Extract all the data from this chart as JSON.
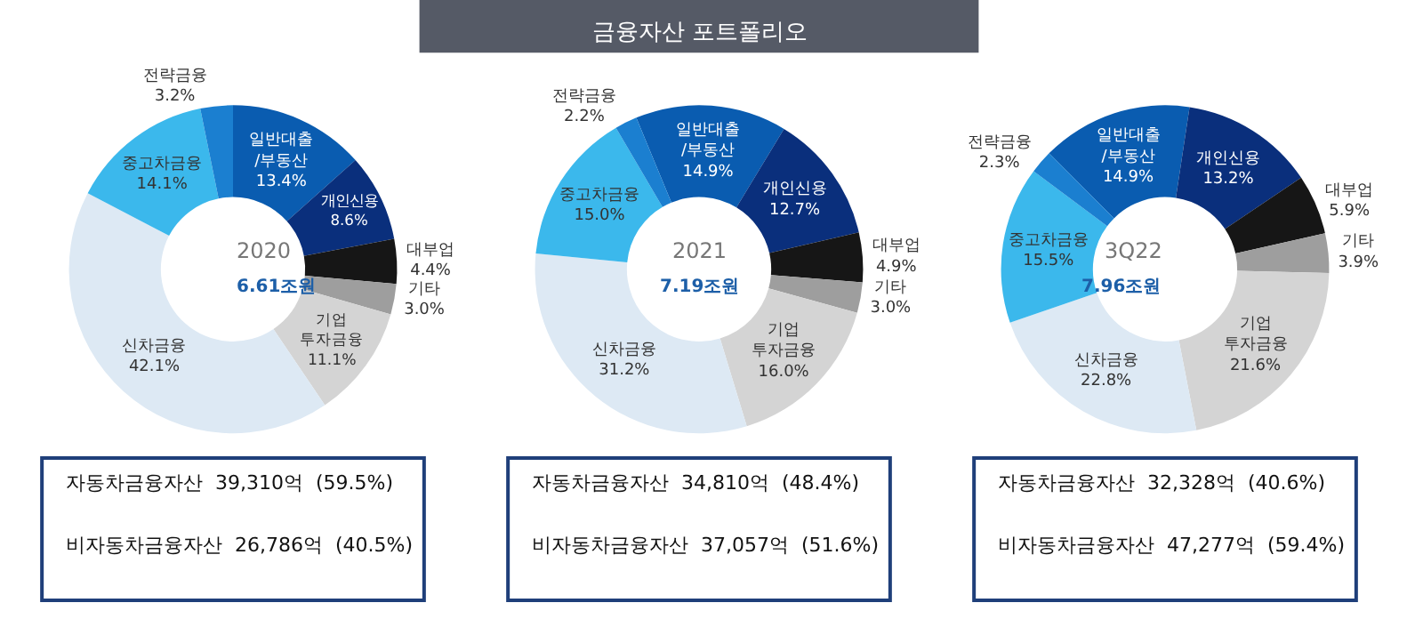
{
  "chart_data": [
    {
      "type": "other",
      "title": "금융자산 포트폴리오"
    },
    {
      "type": "donut",
      "categories": [
        "일반대출\n/부동산",
        "개인신용",
        "대부업",
        "기타",
        "기업\n투자금융",
        "신차금융",
        "중고차금융",
        "전략금융"
      ],
      "values": [
        13.4,
        8.6,
        4.4,
        3.0,
        11.1,
        42.1,
        14.1,
        3.2
      ],
      "value_labels": [
        "13.4%",
        "8.6%",
        "4.4%",
        "3.0%",
        "11.1%",
        "42.1%",
        "14.1%",
        "3.2%"
      ],
      "colors": [
        "#0a5cb0",
        "#0a2f7c",
        "#161616",
        "#9e9e9e",
        "#d4d4d4",
        "#dde9f4",
        "#3bb8ec",
        "#1b7fd0"
      ],
      "annotations": [
        "2020",
        "6.61조원",
        "자동차금융자산  39,310억  (59.5%)",
        "비자동차금융자산  26,786억  (40.5%)"
      ]
    },
    {
      "type": "donut",
      "categories": [
        "일반대출\n/부동산",
        "개인신용",
        "대부업",
        "기타",
        "기업\n투자금융",
        "신차금융",
        "중고차금융",
        "전략금융"
      ],
      "values": [
        14.9,
        12.7,
        4.9,
        3.0,
        16.0,
        31.2,
        15.0,
        2.2
      ],
      "value_labels": [
        "14.9%",
        "12.7%",
        "4.9%",
        "3.0%",
        "16.0%",
        "31.2%",
        "15.0%",
        "2.2%"
      ],
      "colors": [
        "#0a5cb0",
        "#0a2f7c",
        "#161616",
        "#9e9e9e",
        "#d4d4d4",
        "#dde9f4",
        "#3bb8ec",
        "#1b7fd0"
      ],
      "annotations": [
        "2021",
        "7.19조원",
        "자동차금융자산  34,810억  (48.4%)",
        "비자동차금융자산  37,057억  (51.6%)"
      ]
    },
    {
      "type": "donut",
      "categories": [
        "일반대출\n/부동산",
        "개인신용",
        "대부업",
        "기타",
        "기업\n투자금융",
        "신차금융",
        "중고차금융",
        "전략금융"
      ],
      "values": [
        14.9,
        13.2,
        5.9,
        3.9,
        21.6,
        22.8,
        15.5,
        2.3
      ],
      "value_labels": [
        "14.9%",
        "13.2%",
        "5.9%",
        "3.9%",
        "21.6%",
        "22.8%",
        "15.5%",
        "2.3%"
      ],
      "colors": [
        "#0a5cb0",
        "#0a2f7c",
        "#161616",
        "#9e9e9e",
        "#d4d4d4",
        "#dde9f4",
        "#3bb8ec",
        "#1b7fd0"
      ],
      "annotations": [
        "3Q22",
        "7.96조원",
        "자동차금융자산  32,328억  (40.6%)",
        "비자동차금융자산  47,277억  (59.4%)"
      ]
    }
  ]
}
